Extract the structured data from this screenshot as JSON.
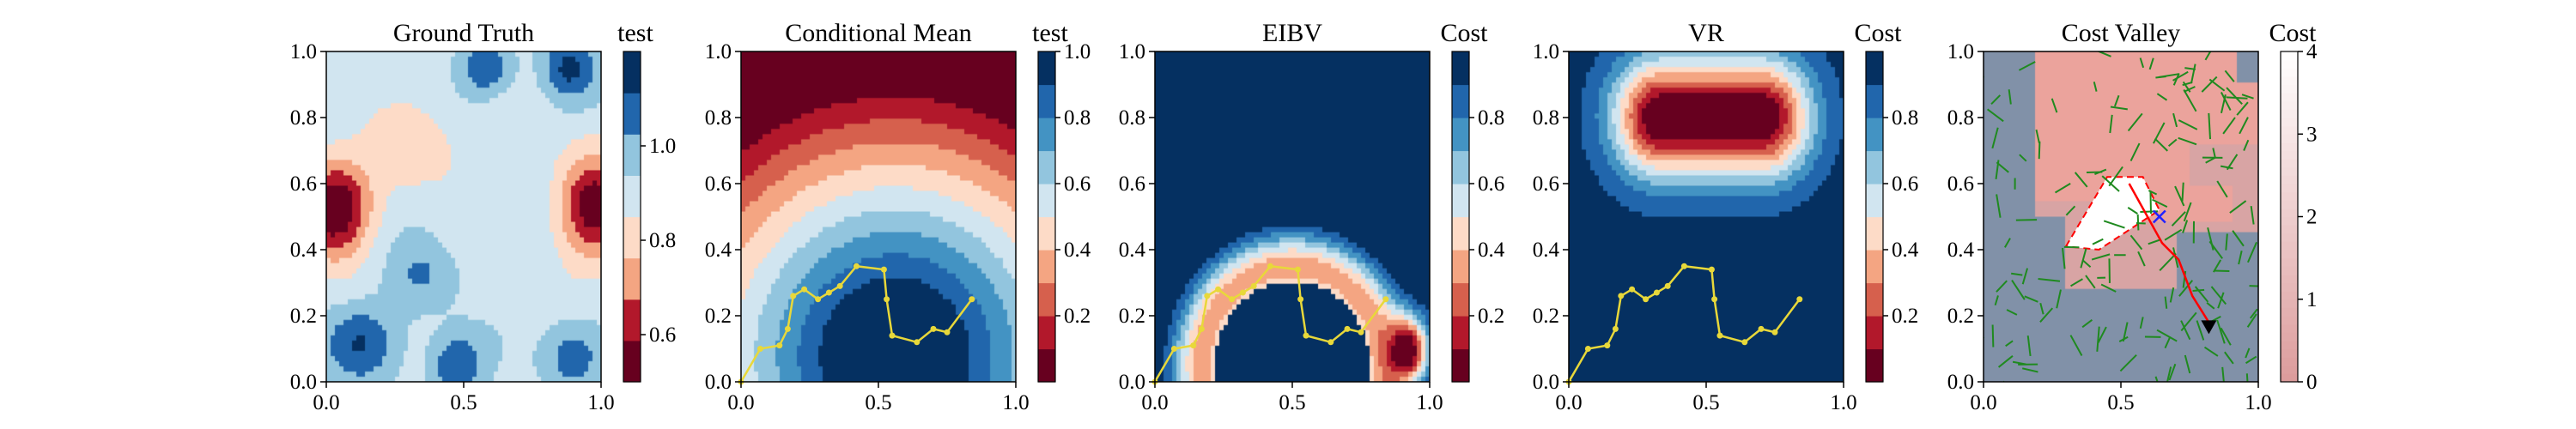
{
  "chart_data": [
    {
      "type": "heatmap",
      "title": "Ground Truth",
      "colorbar_title": "test",
      "colormap": "RdBu",
      "xlim": [
        0,
        1
      ],
      "ylim": [
        0,
        1
      ],
      "xticks": [
        "0.0",
        "0.5",
        "1.0"
      ],
      "yticks": [
        "0.0",
        "0.2",
        "0.4",
        "0.6",
        "0.8",
        "1.0"
      ],
      "colorbar_range": [
        0.5,
        1.2
      ],
      "colorbar_ticks": [
        "0.6",
        "0.8",
        "1.0"
      ],
      "colorbar_tick_values": [
        0.6,
        0.8,
        1.0
      ]
    },
    {
      "type": "heatmap",
      "title": "Conditional Mean",
      "colorbar_title": "test",
      "colormap": "RdBu",
      "xlim": [
        0,
        1
      ],
      "ylim": [
        0,
        1
      ],
      "xticks": [
        "0.0",
        "0.5",
        "1.0"
      ],
      "yticks": [
        "0.0",
        "0.2",
        "0.4",
        "0.6",
        "0.8",
        "1.0"
      ],
      "colorbar_range": [
        0,
        1
      ],
      "colorbar_ticks": [
        "0.2",
        "0.4",
        "0.6",
        "0.8",
        "1.0"
      ],
      "colorbar_tick_values": [
        0.2,
        0.4,
        0.6,
        0.8,
        1.0
      ],
      "path_color": "#e8d83a",
      "path": [
        [
          0.0,
          0.0
        ],
        [
          0.07,
          0.1
        ],
        [
          0.14,
          0.11
        ],
        [
          0.17,
          0.16
        ],
        [
          0.19,
          0.26
        ],
        [
          0.23,
          0.28
        ],
        [
          0.28,
          0.25
        ],
        [
          0.32,
          0.27
        ],
        [
          0.36,
          0.29
        ],
        [
          0.42,
          0.35
        ],
        [
          0.52,
          0.34
        ],
        [
          0.53,
          0.25
        ],
        [
          0.55,
          0.14
        ],
        [
          0.64,
          0.12
        ],
        [
          0.7,
          0.16
        ],
        [
          0.75,
          0.15
        ],
        [
          0.84,
          0.25
        ]
      ]
    },
    {
      "type": "heatmap",
      "title": "EIBV",
      "colorbar_title": "Cost",
      "colormap": "RdBu",
      "xlim": [
        0,
        1
      ],
      "ylim": [
        0,
        1
      ],
      "xticks": [
        "0.0",
        "0.5",
        "1.0"
      ],
      "yticks": [
        "0.0",
        "0.2",
        "0.4",
        "0.6",
        "0.8",
        "1.0"
      ],
      "colorbar_range": [
        0,
        1
      ],
      "colorbar_ticks": [
        "0.2",
        "0.4",
        "0.6",
        "0.8"
      ],
      "colorbar_tick_values": [
        0.2,
        0.4,
        0.6,
        0.8
      ],
      "path_color": "#e8d83a",
      "path": [
        [
          0.0,
          0.0
        ],
        [
          0.07,
          0.1
        ],
        [
          0.14,
          0.11
        ],
        [
          0.17,
          0.16
        ],
        [
          0.19,
          0.26
        ],
        [
          0.23,
          0.28
        ],
        [
          0.28,
          0.25
        ],
        [
          0.32,
          0.27
        ],
        [
          0.36,
          0.29
        ],
        [
          0.42,
          0.35
        ],
        [
          0.52,
          0.34
        ],
        [
          0.53,
          0.25
        ],
        [
          0.55,
          0.14
        ],
        [
          0.64,
          0.12
        ],
        [
          0.7,
          0.16
        ],
        [
          0.75,
          0.15
        ],
        [
          0.84,
          0.25
        ]
      ]
    },
    {
      "type": "heatmap",
      "title": "VR",
      "colorbar_title": "Cost",
      "colormap": "RdBu",
      "xlim": [
        0,
        1
      ],
      "ylim": [
        0,
        1
      ],
      "xticks": [
        "0.0",
        "0.5",
        "1.0"
      ],
      "yticks": [
        "0.0",
        "0.2",
        "0.4",
        "0.6",
        "0.8",
        "1.0"
      ],
      "colorbar_range": [
        0,
        1
      ],
      "colorbar_ticks": [
        "0.2",
        "0.4",
        "0.6",
        "0.8"
      ],
      "colorbar_tick_values": [
        0.2,
        0.4,
        0.6,
        0.8
      ],
      "path_color": "#e8d83a",
      "path": [
        [
          0.0,
          0.0
        ],
        [
          0.07,
          0.1
        ],
        [
          0.14,
          0.11
        ],
        [
          0.17,
          0.16
        ],
        [
          0.19,
          0.26
        ],
        [
          0.23,
          0.28
        ],
        [
          0.28,
          0.25
        ],
        [
          0.32,
          0.27
        ],
        [
          0.36,
          0.29
        ],
        [
          0.42,
          0.35
        ],
        [
          0.52,
          0.34
        ],
        [
          0.53,
          0.25
        ],
        [
          0.55,
          0.14
        ],
        [
          0.64,
          0.12
        ],
        [
          0.7,
          0.16
        ],
        [
          0.75,
          0.15
        ],
        [
          0.84,
          0.25
        ]
      ]
    },
    {
      "type": "heatmap",
      "title": "Cost Valley",
      "colorbar_title": "Cost",
      "colormap": "white-to-red",
      "xlim": [
        0,
        1
      ],
      "ylim": [
        0,
        1
      ],
      "xticks": [
        "0.0",
        "0.5",
        "1.0"
      ],
      "yticks": [
        "0.0",
        "0.2",
        "0.4",
        "0.6",
        "0.8",
        "1.0"
      ],
      "colorbar_range": [
        0,
        4
      ],
      "colorbar_ticks": [
        "0",
        "1",
        "2",
        "3",
        "4"
      ],
      "colorbar_tick_values": [
        0,
        1,
        2,
        3,
        4
      ],
      "tree_color": "#1f8a1f",
      "route_color": "#ff0000",
      "route": [
        [
          0.53,
          0.6
        ],
        [
          0.65,
          0.42
        ],
        [
          0.71,
          0.37
        ],
        [
          0.76,
          0.26
        ],
        [
          0.82,
          0.18
        ]
      ],
      "current_marker": {
        "x": 0.64,
        "y": 0.5,
        "color": "#2222ff"
      },
      "next_marker": {
        "x": 0.82,
        "y": 0.16,
        "color": "#000000"
      },
      "obstacle": [
        [
          0.3,
          0.41
        ],
        [
          0.45,
          0.62
        ],
        [
          0.58,
          0.62
        ],
        [
          0.64,
          0.52
        ],
        [
          0.42,
          0.4
        ]
      ]
    }
  ]
}
